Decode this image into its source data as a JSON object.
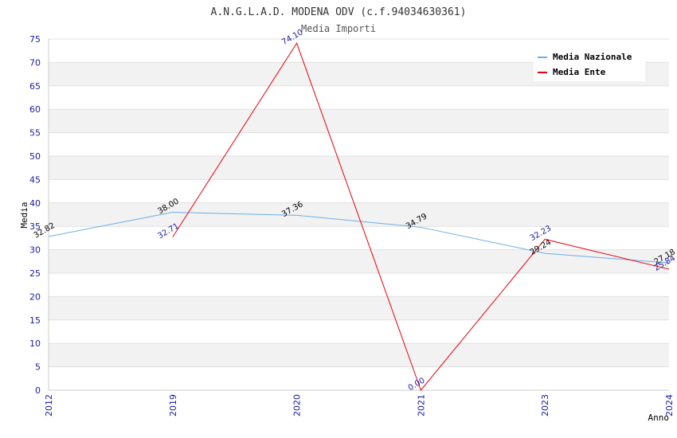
{
  "chart_data": {
    "type": "line",
    "title": "A.N.G.L.A.D. MODENA ODV (c.f.94034630361)",
    "subtitle": "Media Importi",
    "xlabel": "Anno",
    "ylabel": "Media",
    "ylim": [
      0,
      75
    ],
    "yticks": [
      "0",
      "5",
      "10",
      "15",
      "20",
      "25",
      "30",
      "35",
      "40",
      "45",
      "50",
      "55",
      "60",
      "65",
      "70",
      "75"
    ],
    "categories": [
      "2012",
      "2019",
      "2020",
      "2021",
      "2023",
      "2024"
    ],
    "series": [
      {
        "name": "Media Nazionale",
        "color": "#6aaee8",
        "values": [
          32.82,
          38.0,
          37.36,
          34.79,
          29.24,
          27.18
        ],
        "labels": [
          "32.82",
          "38.00",
          "37.36",
          "34.79",
          "29.24",
          "27.18"
        ],
        "label_color": "#000000"
      },
      {
        "name": "Media Ente",
        "color": "#e8000b",
        "values": [
          null,
          32.71,
          74.1,
          0.0,
          32.23,
          25.84
        ],
        "labels": [
          "",
          "32.71",
          "74.10",
          "0.00",
          "32.23",
          "25.84"
        ],
        "label_color": "#1a1aa6"
      }
    ],
    "legend_position": "top-right",
    "grid": true
  }
}
